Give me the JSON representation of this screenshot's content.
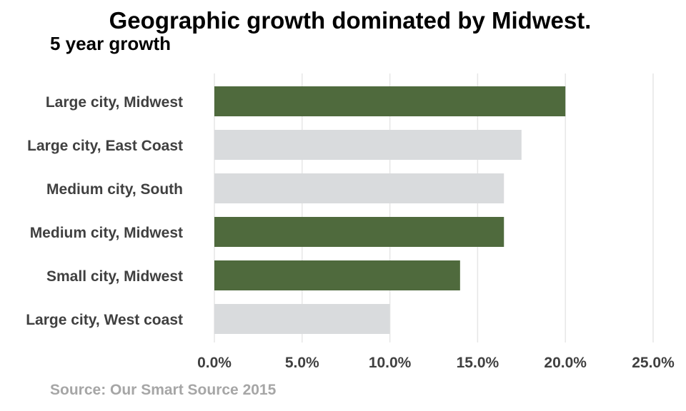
{
  "chart_data": {
    "type": "bar",
    "orientation": "horizontal",
    "title": "Geographic growth dominated by Midwest.",
    "subtitle": "5 year growth",
    "source": "Source: Our Smart Source 2015",
    "categories": [
      "Large city, Midwest",
      "Large city, East Coast",
      "Medium city, South",
      "Medium city, Midwest",
      "Small city, Midwest",
      "Large city, West coast"
    ],
    "values": [
      20.0,
      17.5,
      16.5,
      16.5,
      14.0,
      10.0
    ],
    "highlight": [
      true,
      false,
      false,
      true,
      true,
      false
    ],
    "xlim": [
      0,
      25
    ],
    "xticks": [
      0,
      5,
      10,
      15,
      20,
      25
    ],
    "xtick_labels": [
      "0.0%",
      "5.0%",
      "10.0%",
      "15.0%",
      "20.0%",
      "25.0%"
    ],
    "xlabel": "",
    "ylabel": "",
    "grid": "vertical",
    "legend": "none",
    "colors": {
      "highlight": "#4f6a3d",
      "default": "#d9dbdd",
      "grid": "#e6e6e6"
    }
  }
}
